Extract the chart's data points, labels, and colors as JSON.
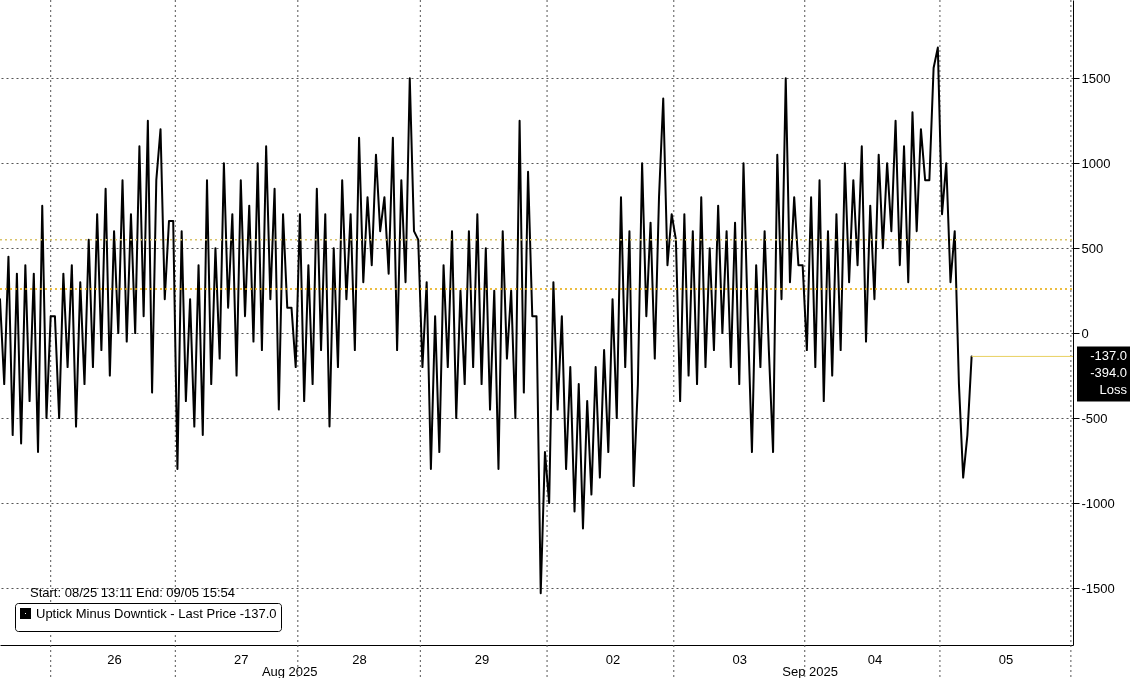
{
  "chart_data": {
    "type": "line",
    "annotations": [
      "Start: 08/25 13:11 End: 09/05 15:54",
      "-394.0",
      "Loss",
      "Aug 2025",
      "Sep 2025"
    ],
    "categories": [
      null,
      null,
      null,
      null,
      null,
      null,
      null,
      null,
      null,
      null,
      null,
      null,
      null,
      null,
      null,
      null,
      null,
      null,
      null,
      null,
      null,
      null,
      null,
      null,
      null,
      null,
      null,
      "26",
      null,
      null,
      null,
      null,
      null,
      null,
      null,
      null,
      null,
      null,
      null,
      null,
      null,
      null,
      null,
      null,
      null,
      null,
      null,
      null,
      null,
      null,
      null,
      null,
      null,
      null,
      null,
      null,
      null,
      "27",
      null,
      null,
      null,
      null,
      null,
      null,
      null,
      null,
      null,
      null,
      null,
      null,
      null,
      null,
      null,
      null,
      null,
      null,
      null,
      null,
      null,
      null,
      null,
      null,
      null,
      null,
      null,
      "28",
      null,
      null,
      null,
      null,
      null,
      null,
      null,
      null,
      null,
      null,
      null,
      null,
      null,
      null,
      null,
      null,
      null,
      null,
      null,
      null,
      null,
      null,
      null,
      null,
      null,
      null,
      null,
      null,
      "29",
      null,
      null,
      null,
      null,
      null,
      null,
      null,
      null,
      null,
      null,
      null,
      null,
      null,
      null,
      null,
      null,
      null,
      null,
      null,
      null,
      null,
      null,
      null,
      null,
      null,
      null,
      null,
      null,
      null,
      null,
      "02",
      null,
      null,
      null,
      null,
      null,
      null,
      null,
      null,
      null,
      null,
      null,
      null,
      null,
      null,
      null,
      null,
      null,
      null,
      null,
      null,
      null,
      null,
      null,
      null,
      null,
      null,
      null,
      null,
      null,
      "03",
      null,
      null,
      null,
      null,
      null,
      null,
      null,
      null,
      null,
      null,
      null,
      null,
      null,
      null,
      null,
      null,
      null,
      null,
      null,
      null,
      null,
      null,
      null,
      null,
      null,
      null,
      null,
      null,
      null,
      null,
      null,
      "04",
      null,
      null,
      null,
      null,
      null,
      null,
      null,
      null,
      null,
      null,
      null,
      null,
      null,
      null,
      null,
      null,
      null,
      null,
      null,
      null,
      null,
      null,
      null,
      null,
      null,
      null,
      null,
      null,
      null,
      null,
      "05",
      null,
      null,
      null,
      null,
      null,
      null,
      null,
      null,
      null,
      null,
      null,
      null,
      null,
      null,
      null,
      null
    ],
    "ylim": [
      -1835,
      1960
    ],
    "yticks": [
      -1500,
      -1000,
      -500,
      0,
      500,
      1000,
      1500
    ],
    "grid": true,
    "legend": "bottom left",
    "ref_lines": [
      {
        "axis": "y",
        "value": 550,
        "color": "#d9c36a",
        "line_style": "dotted"
      },
      {
        "axis": "y",
        "value": 260,
        "color": "#e6a800",
        "line_style": "dotted"
      },
      {
        "axis": "y",
        "value": -137,
        "label": "-137.0",
        "color": "#e8d060",
        "line_style": "solid"
      }
    ],
    "series": [
      {
        "name": "Uptick Minus Downtick - Last Price -137.0",
        "color": "#000000",
        "values": [
          200,
          -300,
          450,
          -600,
          350,
          -650,
          400,
          -400,
          350,
          -700,
          750,
          -500,
          100,
          100,
          -500,
          350,
          -200,
          400,
          -550,
          300,
          -300,
          550,
          -200,
          700,
          -100,
          850,
          -250,
          600,
          0,
          900,
          -50,
          700,
          0,
          1100,
          100,
          1250,
          -350,
          900,
          1200,
          200,
          660,
          660,
          -800,
          600,
          -400,
          200,
          -550,
          400,
          -600,
          900,
          -300,
          500,
          -150,
          1000,
          150,
          700,
          -250,
          900,
          100,
          750,
          -50,
          1000,
          -100,
          1100,
          200,
          850,
          -450,
          700,
          150,
          150,
          -200,
          700,
          -400,
          400,
          -300,
          850,
          -100,
          700,
          -550,
          500,
          -200,
          900,
          200,
          700,
          -100,
          1150,
          300,
          800,
          400,
          1050,
          600,
          800,
          350,
          1150,
          -100,
          900,
          300,
          1500,
          600,
          550,
          -200,
          300,
          -800,
          100,
          -700,
          400,
          -200,
          600,
          -500,
          250,
          -300,
          600,
          -200,
          700,
          -300,
          500,
          -450,
          250,
          -800,
          600,
          -150,
          250,
          -500,
          1250,
          -350,
          950,
          100,
          100,
          -1530,
          -700,
          -1000,
          300,
          -450,
          100,
          -800,
          -200,
          -1050,
          -300,
          -1150,
          -400,
          -950,
          -200,
          -850,
          -100,
          -700,
          200,
          -500,
          800,
          -200,
          600,
          -900,
          -300,
          1000,
          100,
          650,
          -150,
          800,
          1380,
          400,
          700,
          550,
          -400,
          700,
          -250,
          600,
          -300,
          800,
          -200,
          500,
          -100,
          750,
          0,
          600,
          -200,
          650,
          -300,
          1000,
          100,
          -700,
          400,
          -200,
          600,
          -100,
          -700,
          1050,
          200,
          1500,
          300,
          800,
          400,
          400,
          -100,
          800,
          -200,
          900,
          -400,
          600,
          -250,
          700,
          -100,
          1000,
          300,
          900,
          400,
          1100,
          -50,
          750,
          200,
          1050,
          500,
          1000,
          600,
          1250,
          400,
          1100,
          300,
          1300,
          600,
          1200,
          900,
          900,
          1560,
          1680,
          700,
          1000,
          300,
          600,
          -300,
          -850,
          -600,
          -137,
          null,
          null,
          null,
          null,
          null,
          null,
          null,
          null,
          null,
          null,
          null,
          null,
          null,
          null,
          null,
          null,
          null,
          null,
          null,
          null,
          null,
          null,
          null,
          null
        ]
      }
    ]
  }
}
